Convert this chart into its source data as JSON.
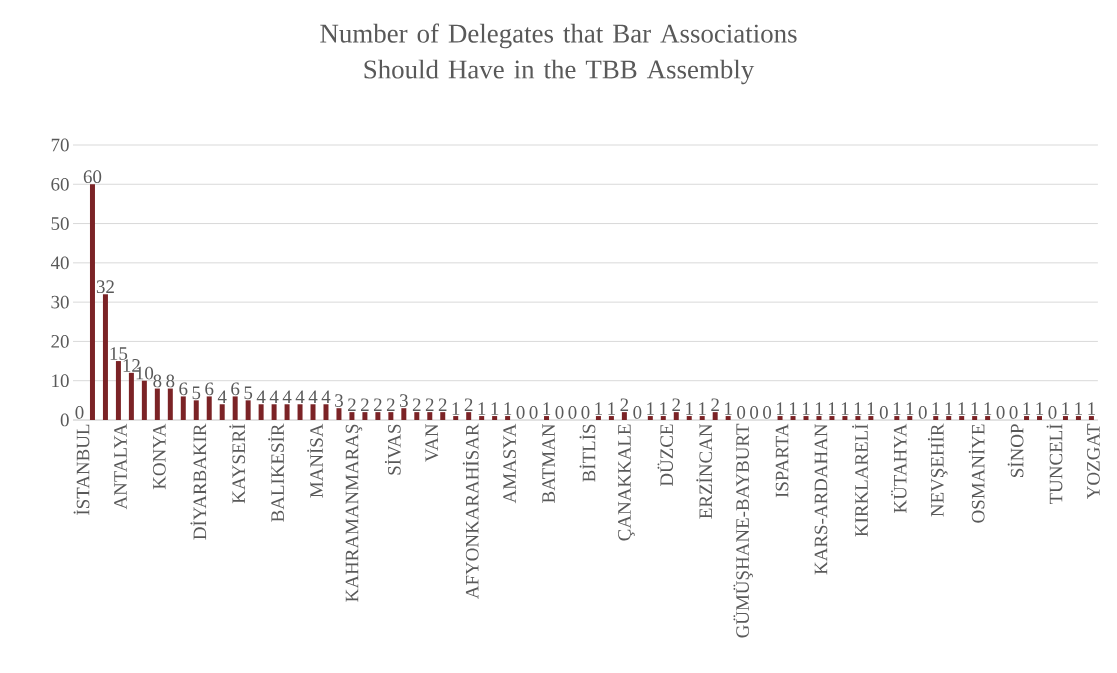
{
  "chart_data": {
    "type": "bar",
    "title": "Number of Delegates that Bar Associations Should Have in the TBB Assembly",
    "categories": [
      "İSTANBUL",
      null,
      null,
      "ANTALYA",
      null,
      null,
      "KONYA",
      null,
      null,
      "DİYARBAKIR",
      null,
      null,
      "KAYSERİ",
      null,
      null,
      "BALIKESİR",
      null,
      null,
      "MANİSA",
      null,
      null,
      "KAHRAMANMARAŞ",
      null,
      null,
      "SİVAS",
      null,
      null,
      "VAN",
      null,
      null,
      "AFYONKARAHİSAR",
      null,
      null,
      "AMASYA",
      null,
      null,
      "BATMAN",
      null,
      null,
      "BİTLİS",
      null,
      null,
      "ÇANAKKALE",
      null,
      null,
      "DÜZCE",
      null,
      null,
      "ERZİNCAN",
      null,
      null,
      "GÜMÜŞHANE-BAYBURT",
      null,
      null,
      "ISPARTA",
      null,
      null,
      "KARS-ARDAHAN",
      null,
      null,
      "KIRKLARELİ",
      null,
      null,
      "KÜTAHYA",
      null,
      null,
      "NEVŞEHİR",
      null,
      null,
      "OSMANİYE",
      null,
      null,
      "SİNOP",
      null,
      null,
      "TUNCELİ",
      null,
      null,
      "YOZGAT"
    ],
    "values": [
      0,
      60,
      32,
      15,
      12,
      10,
      8,
      8,
      6,
      5,
      6,
      4,
      6,
      5,
      4,
      4,
      4,
      4,
      4,
      4,
      3,
      2,
      2,
      2,
      2,
      3,
      2,
      2,
      2,
      1,
      2,
      1,
      1,
      1,
      0,
      0,
      1,
      0,
      0,
      0,
      1,
      1,
      2,
      0,
      1,
      1,
      2,
      1,
      1,
      2,
      1,
      0,
      0,
      0,
      1,
      1,
      1,
      1,
      1,
      1,
      1,
      1,
      0,
      1,
      1,
      0,
      1,
      1,
      1,
      1,
      1,
      0,
      0,
      1,
      1,
      0,
      1,
      1,
      1
    ],
    "color": "#7b2326",
    "ylim": [
      0,
      70
    ],
    "yticks": [
      0,
      10,
      20,
      30,
      40,
      50,
      60,
      70
    ],
    "grid": "y",
    "data_labels": true
  }
}
